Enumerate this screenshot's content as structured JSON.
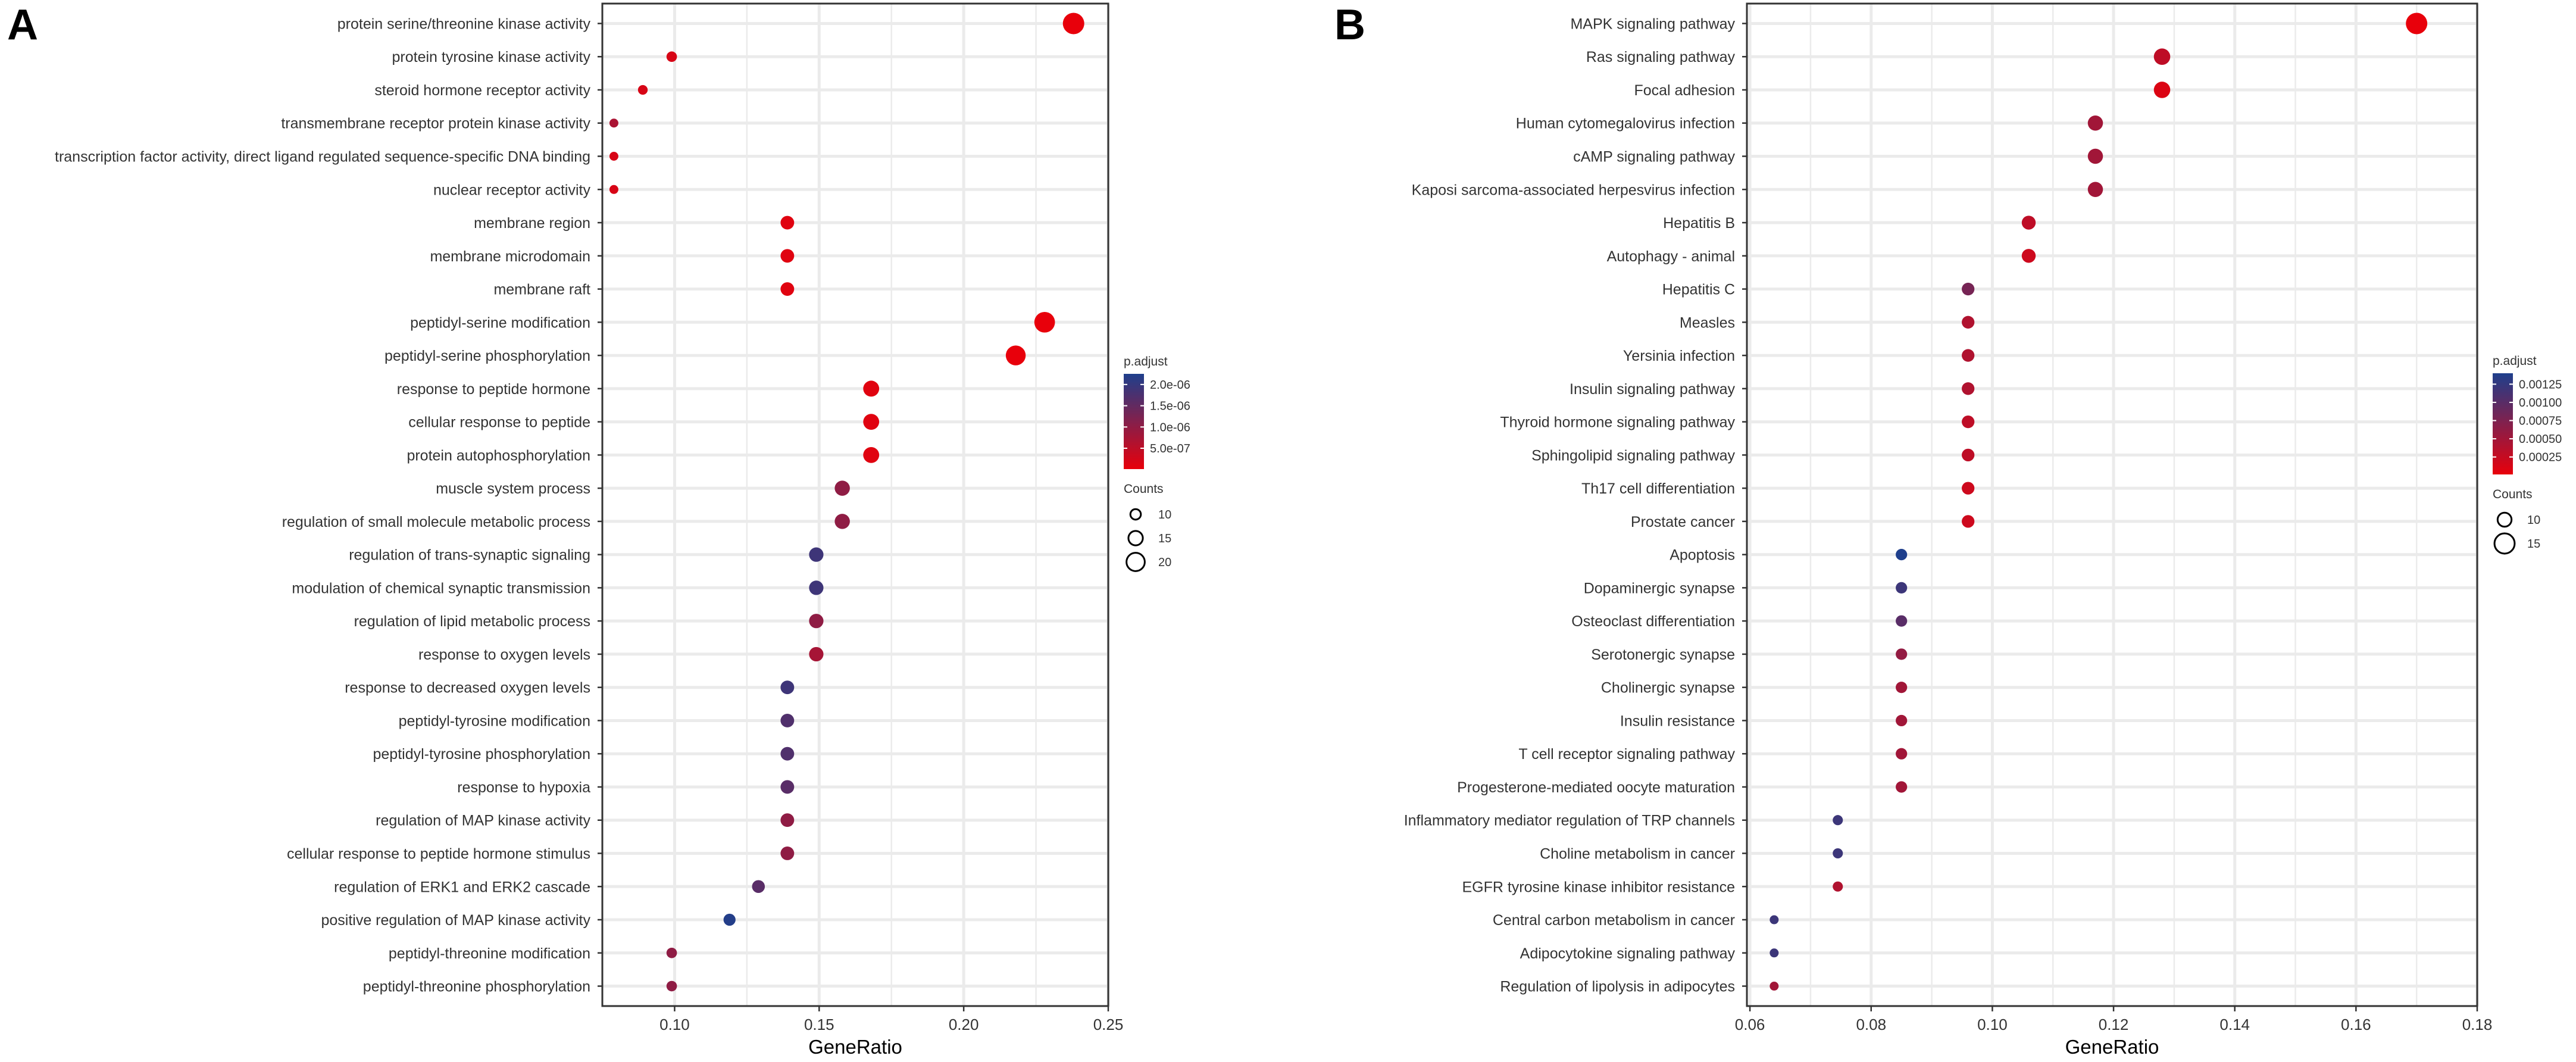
{
  "colors": {
    "low": "#e8000b",
    "high": "#1f3f8c",
    "grid": "#ebebeb",
    "text": "#333333"
  },
  "chart_data": [
    {
      "panel_label": "A",
      "type": "scatter",
      "xlabel": "GeneRatio",
      "xlim": [
        0.075,
        0.25
      ],
      "xticks": [
        0.1,
        0.15,
        0.2,
        0.25
      ],
      "xtick_labels": [
        "0.10",
        "0.15",
        "0.20",
        "0.25"
      ],
      "legend": {
        "color_title": "p.adjust",
        "color_ticks": [
          "2.0e-06",
          "1.5e-06",
          "1.0e-06",
          "5.0e-07"
        ],
        "color_tick_values": [
          2e-06,
          1.5e-06,
          1e-06,
          5e-07
        ],
        "color_range": [
          1e-08,
          2.25e-06
        ],
        "size_title": "Counts",
        "size_values": [
          10,
          15,
          20
        ],
        "size_labels": [
          "10",
          "15",
          "20"
        ]
      },
      "points": [
        {
          "term": "protein serine/threonine kinase activity",
          "ratio": 0.238,
          "count": 24,
          "padj": 1e-08
        },
        {
          "term": "protein tyrosine kinase activity",
          "ratio": 0.099,
          "count": 10,
          "padj": 2e-07
        },
        {
          "term": "steroid hormone receptor activity",
          "ratio": 0.089,
          "count": 9,
          "padj": 2e-07
        },
        {
          "term": "transmembrane receptor protein kinase activity",
          "ratio": 0.079,
          "count": 8,
          "padj": 7e-07
        },
        {
          "term": "transcription factor activity, direct ligand regulated sequence-specific DNA binding",
          "ratio": 0.079,
          "count": 8,
          "padj": 2e-07
        },
        {
          "term": "nuclear receptor activity",
          "ratio": 0.079,
          "count": 8,
          "padj": 2e-07
        },
        {
          "term": "membrane region",
          "ratio": 0.139,
          "count": 14,
          "padj": 1e-07
        },
        {
          "term": "membrane microdomain",
          "ratio": 0.139,
          "count": 14,
          "padj": 1e-07
        },
        {
          "term": "membrane raft",
          "ratio": 0.139,
          "count": 14,
          "padj": 1e-07
        },
        {
          "term": "peptidyl-serine modification",
          "ratio": 0.228,
          "count": 23,
          "padj": 1e-08
        },
        {
          "term": "peptidyl-serine phosphorylation",
          "ratio": 0.218,
          "count": 22,
          "padj": 1e-08
        },
        {
          "term": "response to peptide hormone",
          "ratio": 0.168,
          "count": 17,
          "padj": 1e-07
        },
        {
          "term": "cellular response to peptide",
          "ratio": 0.168,
          "count": 17,
          "padj": 1e-07
        },
        {
          "term": "protein autophosphorylation",
          "ratio": 0.168,
          "count": 17,
          "padj": 1e-07
        },
        {
          "term": "muscle system process",
          "ratio": 0.158,
          "count": 16,
          "padj": 1e-06
        },
        {
          "term": "regulation of small molecule metabolic process",
          "ratio": 0.158,
          "count": 16,
          "padj": 1e-06
        },
        {
          "term": "regulation of trans-synaptic signaling",
          "ratio": 0.149,
          "count": 15,
          "padj": 1.9e-06
        },
        {
          "term": "modulation of chemical synaptic transmission",
          "ratio": 0.149,
          "count": 15,
          "padj": 1.9e-06
        },
        {
          "term": "regulation of lipid metabolic process",
          "ratio": 0.149,
          "count": 15,
          "padj": 1e-06
        },
        {
          "term": "response to oxygen levels",
          "ratio": 0.149,
          "count": 15,
          "padj": 7.5e-07
        },
        {
          "term": "response to decreased oxygen levels",
          "ratio": 0.139,
          "count": 14,
          "padj": 1.9e-06
        },
        {
          "term": "peptidyl-tyrosine modification",
          "ratio": 0.139,
          "count": 14,
          "padj": 1.7e-06
        },
        {
          "term": "peptidyl-tyrosine phosphorylation",
          "ratio": 0.139,
          "count": 14,
          "padj": 1.7e-06
        },
        {
          "term": "response to hypoxia",
          "ratio": 0.139,
          "count": 14,
          "padj": 1.6e-06
        },
        {
          "term": "regulation of MAP kinase activity",
          "ratio": 0.139,
          "count": 14,
          "padj": 1e-06
        },
        {
          "term": "cellular response to peptide hormone stimulus",
          "ratio": 0.139,
          "count": 14,
          "padj": 1e-06
        },
        {
          "term": "regulation of ERK1 and ERK2 cascade",
          "ratio": 0.129,
          "count": 13,
          "padj": 1.6e-06
        },
        {
          "term": "positive regulation of MAP kinase activity",
          "ratio": 0.119,
          "count": 12,
          "padj": 2.2e-06
        },
        {
          "term": "peptidyl-threonine modification",
          "ratio": 0.099,
          "count": 10,
          "padj": 1e-06
        },
        {
          "term": "peptidyl-threonine phosphorylation",
          "ratio": 0.099,
          "count": 10,
          "padj": 1e-06
        }
      ]
    },
    {
      "panel_label": "B",
      "type": "scatter",
      "xlabel": "GeneRatio",
      "xlim": [
        0.0595,
        0.18
      ],
      "xticks": [
        0.06,
        0.08,
        0.1,
        0.12,
        0.14,
        0.16,
        0.18
      ],
      "xtick_labels": [
        "0.06",
        "0.08",
        "0.10",
        "0.12",
        "0.14",
        "0.16",
        "0.18"
      ],
      "legend": {
        "color_title": "p.adjust",
        "color_ticks": [
          "0.00125",
          "0.00100",
          "0.00075",
          "0.00050",
          "0.00025"
        ],
        "color_tick_values": [
          0.00125,
          0.001,
          0.00075,
          0.0005,
          0.00025
        ],
        "color_range": [
          1e-05,
          0.0014
        ],
        "size_title": "Counts",
        "size_values": [
          10,
          15
        ],
        "size_labels": [
          "10",
          "15"
        ]
      },
      "points": [
        {
          "term": "MAPK signaling pathway",
          "ratio": 0.17,
          "count": 16,
          "padj": 1e-05
        },
        {
          "term": "Ras signaling pathway",
          "ratio": 0.128,
          "count": 12,
          "padj": 0.0003
        },
        {
          "term": "Focal adhesion",
          "ratio": 0.128,
          "count": 12,
          "padj": 0.0001
        },
        {
          "term": "Human cytomegalovirus infection",
          "ratio": 0.117,
          "count": 11,
          "padj": 0.0005
        },
        {
          "term": "cAMP signaling pathway",
          "ratio": 0.117,
          "count": 11,
          "padj": 0.0005
        },
        {
          "term": "Kaposi sarcoma-associated herpesvirus infection",
          "ratio": 0.117,
          "count": 11,
          "padj": 0.0005
        },
        {
          "term": "Hepatitis B",
          "ratio": 0.106,
          "count": 10,
          "padj": 0.0003
        },
        {
          "term": "Autophagy - animal",
          "ratio": 0.106,
          "count": 10,
          "padj": 0.0002
        },
        {
          "term": "Hepatitis C",
          "ratio": 0.096,
          "count": 9,
          "padj": 0.0008
        },
        {
          "term": "Measles",
          "ratio": 0.096,
          "count": 9,
          "padj": 0.0004
        },
        {
          "term": "Yersinia infection",
          "ratio": 0.096,
          "count": 9,
          "padj": 0.0004
        },
        {
          "term": "Insulin signaling pathway",
          "ratio": 0.096,
          "count": 9,
          "padj": 0.0004
        },
        {
          "term": "Thyroid hormone signaling pathway",
          "ratio": 0.096,
          "count": 9,
          "padj": 0.0003
        },
        {
          "term": "Sphingolipid signaling pathway",
          "ratio": 0.096,
          "count": 9,
          "padj": 0.0003
        },
        {
          "term": "Th17 cell differentiation",
          "ratio": 0.096,
          "count": 9,
          "padj": 0.0002
        },
        {
          "term": "Prostate cancer",
          "ratio": 0.096,
          "count": 9,
          "padj": 0.0002
        },
        {
          "term": "Apoptosis",
          "ratio": 0.085,
          "count": 8,
          "padj": 0.0014
        },
        {
          "term": "Dopaminergic synapse",
          "ratio": 0.085,
          "count": 8,
          "padj": 0.0012
        },
        {
          "term": "Osteoclast differentiation",
          "ratio": 0.085,
          "count": 8,
          "padj": 0.001
        },
        {
          "term": "Serotonergic synapse",
          "ratio": 0.085,
          "count": 8,
          "padj": 0.0006
        },
        {
          "term": "Cholinergic synapse",
          "ratio": 0.085,
          "count": 8,
          "padj": 0.0005
        },
        {
          "term": "Insulin resistance",
          "ratio": 0.085,
          "count": 8,
          "padj": 0.0005
        },
        {
          "term": "T cell receptor signaling pathway",
          "ratio": 0.085,
          "count": 8,
          "padj": 0.0005
        },
        {
          "term": "Progesterone-mediated oocyte maturation",
          "ratio": 0.085,
          "count": 8,
          "padj": 0.0005
        },
        {
          "term": "Inflammatory mediator regulation of TRP channels",
          "ratio": 0.0745,
          "count": 7,
          "padj": 0.0012
        },
        {
          "term": "Choline metabolism in cancer",
          "ratio": 0.0745,
          "count": 7,
          "padj": 0.0012
        },
        {
          "term": "EGFR tyrosine kinase inhibitor resistance",
          "ratio": 0.0745,
          "count": 7,
          "padj": 0.0004
        },
        {
          "term": "Central carbon metabolism in cancer",
          "ratio": 0.064,
          "count": 6,
          "padj": 0.0012
        },
        {
          "term": "Adipocytokine signaling pathway",
          "ratio": 0.064,
          "count": 6,
          "padj": 0.0012
        },
        {
          "term": "Regulation of lipolysis in adipocytes",
          "ratio": 0.064,
          "count": 6,
          "padj": 0.0005
        }
      ]
    }
  ]
}
